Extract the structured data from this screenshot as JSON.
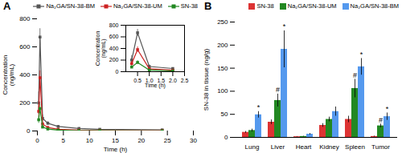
{
  "chart_data": [
    {
      "type": "line",
      "title": "A",
      "xlabel": "Time (h)",
      "ylabel": "Concentration\n(ng/mL)",
      "xlim": [
        0,
        30
      ],
      "ylim": [
        0,
        800
      ],
      "xticks": [
        0,
        5,
        10,
        15,
        20,
        25,
        30
      ],
      "yticks": [
        0,
        200,
        400,
        600,
        800
      ],
      "legend": "upper right",
      "series": [
        {
          "name": "Na₂GA/SN-38-BM",
          "color": "#555555",
          "marker": "square",
          "x": [
            0.25,
            0.5,
            1.0,
            2.0,
            4.0,
            8.0,
            12.0,
            24.0
          ],
          "values": [
            200,
            670,
            90,
            55,
            32,
            18,
            12,
            8
          ],
          "yerr": [
            80,
            60,
            25,
            12,
            8,
            5,
            3,
            2
          ]
        },
        {
          "name": "Na₂GA/SN-38-UM",
          "color": "#cc2222",
          "marker": "square",
          "x": [
            0.25,
            0.5,
            1.0,
            2.0,
            4.0,
            8.0,
            12.0,
            24.0
          ],
          "values": [
            140,
            380,
            50,
            25,
            12,
            6,
            4,
            3
          ],
          "yerr": [
            40,
            50,
            12,
            6,
            3,
            2,
            1,
            0.5
          ]
        },
        {
          "name": "SN-38",
          "color": "#228822",
          "marker": "square",
          "x": [
            0.25,
            0.5,
            1.0,
            2.0,
            4.0,
            8.0,
            12.0,
            24.0
          ],
          "values": [
            80,
            160,
            28,
            14,
            6,
            3,
            2,
            1
          ],
          "yerr": [
            25,
            30,
            6,
            3,
            1.5,
            1,
            0.5,
            0.3
          ]
        }
      ]
    },
    {
      "type": "line",
      "xlabel": "Time (h)",
      "ylabel": "Concentration\n(ng/mL)",
      "xlim": [
        0,
        2.5
      ],
      "ylim": [
        0,
        800
      ],
      "xticks": [
        0.5,
        {
          "value": 1,
          "label": "1.0"
        },
        1.5,
        {
          "value": 2,
          "label": "2.0"
        },
        2.5
      ],
      "yticks": [
        0,
        200,
        400,
        600,
        800
      ],
      "series": [
        {
          "color": "#555555",
          "marker": "square",
          "x": [
            0.25,
            0.5,
            1.0,
            2.0
          ],
          "values": [
            200,
            670,
            90,
            55
          ],
          "yerr": [
            80,
            60,
            25,
            12
          ]
        },
        {
          "color": "#cc2222",
          "marker": "square",
          "x": [
            0.25,
            0.5,
            1.0,
            2.0
          ],
          "values": [
            140,
            380,
            50,
            25
          ],
          "yerr": [
            40,
            50,
            12,
            6
          ]
        },
        {
          "color": "#228822",
          "marker": "square",
          "x": [
            0.25,
            0.5,
            1.0,
            2.0
          ],
          "values": [
            80,
            160,
            28,
            14
          ],
          "yerr": [
            25,
            30,
            6,
            3
          ]
        }
      ]
    },
    {
      "type": "bar",
      "title": "B",
      "ylabel": "SN-38 in tissue (ng/g)",
      "categories": [
        "Lung",
        "Liver",
        "Heart",
        "Kidney",
        "Spleen",
        "Tumor"
      ],
      "ylim": [
        0,
        250
      ],
      "yticks": [
        0,
        50,
        100,
        150,
        200,
        250
      ],
      "legend": "upper right",
      "series": [
        {
          "name": "SN-38",
          "color": "#dd3333",
          "values": [
            11,
            33,
            1.5,
            26,
            39,
            2
          ],
          "yerr": [
            2,
            5,
            0.5,
            4,
            7,
            0.8
          ]
        },
        {
          "name": "Na₂GA/SN-38-UM",
          "color": "#228822",
          "values": [
            15,
            80,
            2,
            39,
            106,
            25
          ],
          "yerr": [
            3,
            14,
            0.5,
            5,
            20,
            4
          ],
          "annotations": [
            null,
            "#",
            null,
            null,
            "#",
            "#"
          ]
        },
        {
          "name": "Na₂GA/SN-38-BM",
          "color": "#5599ee",
          "values": [
            49,
            191,
            7,
            56,
            153,
            45
          ],
          "yerr": [
            7,
            40,
            1.5,
            10,
            18,
            8
          ],
          "annotations": [
            "*",
            "*",
            null,
            null,
            "*",
            "*"
          ]
        }
      ]
    }
  ]
}
